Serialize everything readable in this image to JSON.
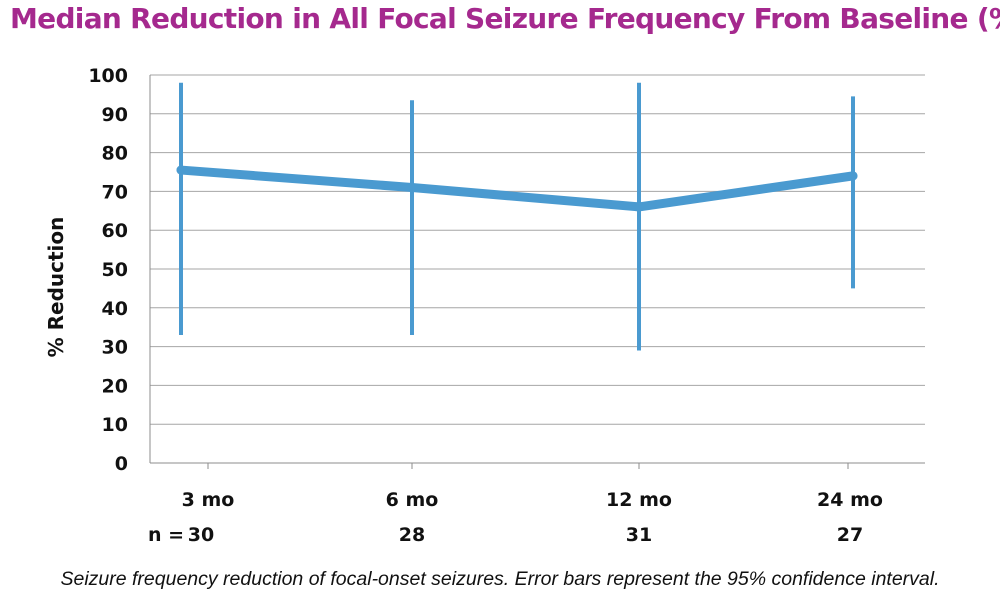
{
  "chart_data": {
    "type": "line",
    "title": "Median Reduction in All Focal Seizure Frequency From Baseline (%)",
    "ylabel": "% Reduction",
    "xlabel": "",
    "ylim": [
      0,
      100
    ],
    "yticks": [
      0,
      10,
      20,
      30,
      40,
      50,
      60,
      70,
      80,
      90,
      100
    ],
    "categories": [
      "3 mo",
      "6 mo",
      "12 mo",
      "24 mo"
    ],
    "n_prefix": "n =",
    "n_values": [
      "30",
      "28",
      "31",
      "27"
    ],
    "series": [
      {
        "values": [
          75.5,
          71,
          66,
          74
        ],
        "error_low": [
          33,
          33,
          29,
          45
        ],
        "error_high": [
          98,
          93.5,
          98,
          94.5
        ]
      }
    ],
    "grid": true,
    "color": "#4a9ad0"
  },
  "caption": "Seizure frequency reduction of focal-onset seizures. Error bars represent the 95% confidence interval."
}
